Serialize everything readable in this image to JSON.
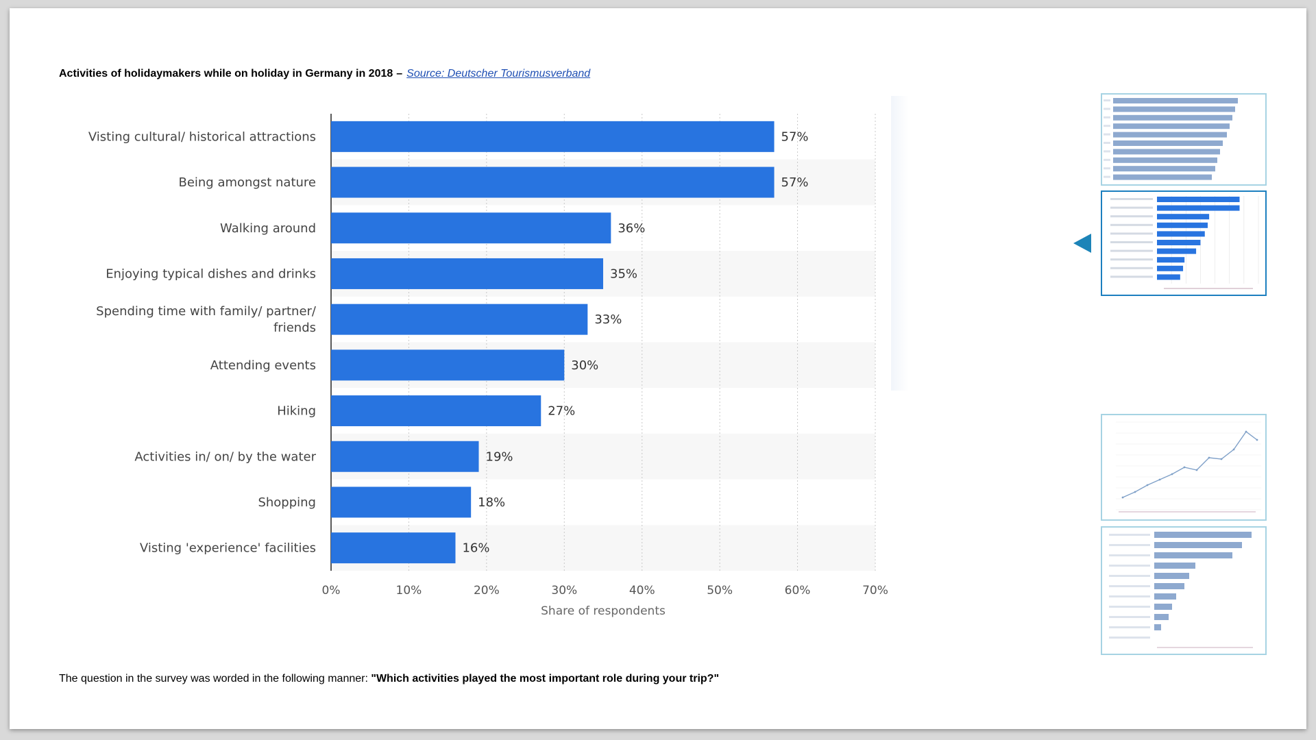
{
  "header": {
    "title": "Activities of holidaymakers while on holiday in Germany in 2018",
    "separator": "–",
    "source_link": "Source: Deutscher Tourismusverband"
  },
  "footnote": {
    "prefix": "The question in the survey was worded in the following manner: ",
    "question": "\"Which activities played the most important role during your trip?\""
  },
  "chart_data": {
    "type": "bar",
    "orientation": "horizontal",
    "categories": [
      "Visting cultural/ historical attractions",
      "Being amongst nature",
      "Walking around",
      "Enjoying typical dishes and drinks",
      "Spending time with family/ partner/ friends",
      "Attending events",
      "Hiking",
      "Activities in/ on/ by the water",
      "Shopping",
      "Visting 'experience' facilities"
    ],
    "category_lines": [
      [
        "Visting cultural/ historical attractions"
      ],
      [
        "Being amongst nature"
      ],
      [
        "Walking around"
      ],
      [
        "Enjoying typical dishes and drinks"
      ],
      [
        "Spending time with family/ partner/",
        "friends"
      ],
      [
        "Attending events"
      ],
      [
        "Hiking"
      ],
      [
        "Activities in/ on/ by the water"
      ],
      [
        "Shopping"
      ],
      [
        "Visting 'experience' facilities"
      ]
    ],
    "values": [
      57,
      57,
      36,
      35,
      33,
      30,
      27,
      19,
      18,
      16
    ],
    "data_labels": [
      "57%",
      "57%",
      "36%",
      "35%",
      "33%",
      "30%",
      "27%",
      "19%",
      "18%",
      "16%"
    ],
    "xticks": [
      0,
      10,
      20,
      30,
      40,
      50,
      60,
      70
    ],
    "xtick_labels": [
      "0%",
      "10%",
      "20%",
      "30%",
      "40%",
      "50%",
      "60%",
      "70%"
    ],
    "xlim": [
      0,
      70
    ],
    "xlabel": "Share of respondents",
    "grid": true,
    "colors": {
      "bar": "#2874e0",
      "band": "#f7f7f7",
      "grid": "#c8c8c8"
    }
  },
  "thumbnails": [
    {
      "name": "bar-chart-thumbnail",
      "active": false
    },
    {
      "name": "activities-chart-thumbnail",
      "active": true
    },
    {
      "name": "line-chart-thumbnail",
      "active": false
    },
    {
      "name": "bar-chart-thumbnail-2",
      "active": false
    }
  ],
  "icons": {
    "current-slide-indicator": "arrow-left-icon"
  }
}
